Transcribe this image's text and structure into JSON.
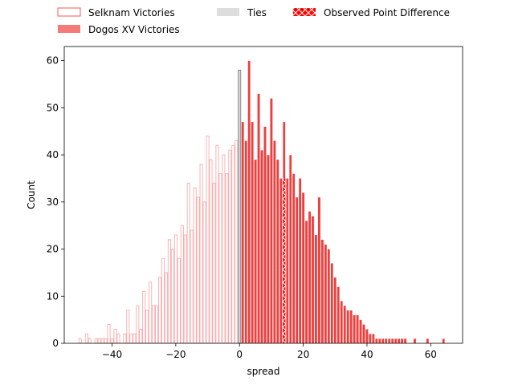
{
  "chart_data": {
    "type": "bar",
    "xlabel": "spread",
    "ylabel": "Count",
    "xlim": [
      -55,
      70
    ],
    "ylim": [
      0,
      63
    ],
    "xticks": [
      -40,
      -20,
      0,
      20,
      40,
      60
    ],
    "xtick_labels": [
      "−40",
      "−20",
      "0",
      "20",
      "40",
      "60"
    ],
    "yticks": [
      0,
      10,
      20,
      30,
      40,
      50,
      60
    ],
    "ytick_labels": [
      "0",
      "10",
      "20",
      "30",
      "40",
      "50",
      "60"
    ],
    "legend_position": "top",
    "series": [
      {
        "name": "Selknam Victories",
        "style": "outline",
        "color": "#f25a5a",
        "x": [
          -50,
          -49,
          -48,
          -47,
          -46,
          -45,
          -44,
          -43,
          -42,
          -41,
          -40,
          -39,
          -38,
          -37,
          -36,
          -35,
          -34,
          -33,
          -32,
          -31,
          -30,
          -29,
          -28,
          -27,
          -26,
          -25,
          -24,
          -23,
          -22,
          -21,
          -20,
          -19,
          -18,
          -17,
          -16,
          -15,
          -14,
          -13,
          -12,
          -11,
          -10,
          -9,
          -8,
          -7,
          -6,
          -5,
          -4,
          -3,
          -2,
          -1
        ],
        "values": [
          1,
          0,
          2,
          1,
          0,
          1,
          1,
          1,
          1,
          4,
          1,
          3,
          2,
          0,
          2,
          7,
          2,
          2,
          8,
          3,
          11,
          7,
          13,
          8,
          8,
          14,
          18,
          15,
          22,
          20,
          23,
          18,
          25,
          23,
          34,
          24,
          33,
          31,
          38,
          30,
          44,
          39,
          34,
          42,
          36,
          40,
          36,
          41,
          42,
          43
        ]
      },
      {
        "name": "Dogos XV Victories",
        "style": "filled",
        "color": "#ee3f3f",
        "x": [
          1,
          2,
          3,
          4,
          5,
          6,
          7,
          8,
          9,
          10,
          11,
          12,
          13,
          14,
          15,
          16,
          17,
          18,
          19,
          20,
          21,
          22,
          23,
          24,
          25,
          26,
          27,
          28,
          29,
          30,
          31,
          32,
          33,
          34,
          35,
          36,
          37,
          38,
          39,
          40,
          41,
          42,
          43,
          44,
          45,
          46,
          47,
          48,
          49,
          50,
          51,
          52,
          55,
          59,
          64
        ],
        "values": [
          47,
          43,
          60,
          47,
          39,
          53,
          41,
          46,
          40,
          52,
          43,
          39,
          35,
          47,
          35,
          40,
          36,
          31,
          35,
          32,
          26,
          28,
          27,
          23,
          31,
          22,
          21,
          20,
          17,
          14,
          12,
          9,
          8,
          7,
          7,
          6,
          6,
          5,
          4,
          3,
          2,
          2,
          1,
          1,
          1,
          1,
          1,
          1,
          1,
          1,
          1,
          1,
          1,
          1,
          1
        ]
      },
      {
        "name": "Ties",
        "style": "filled",
        "color": "#d3d3d3",
        "x": [
          0
        ],
        "values": [
          58
        ]
      },
      {
        "name": "Observed Point Difference",
        "style": "hatched",
        "color": "#ff0000",
        "x": [
          14
        ],
        "values": [
          35
        ]
      }
    ]
  }
}
